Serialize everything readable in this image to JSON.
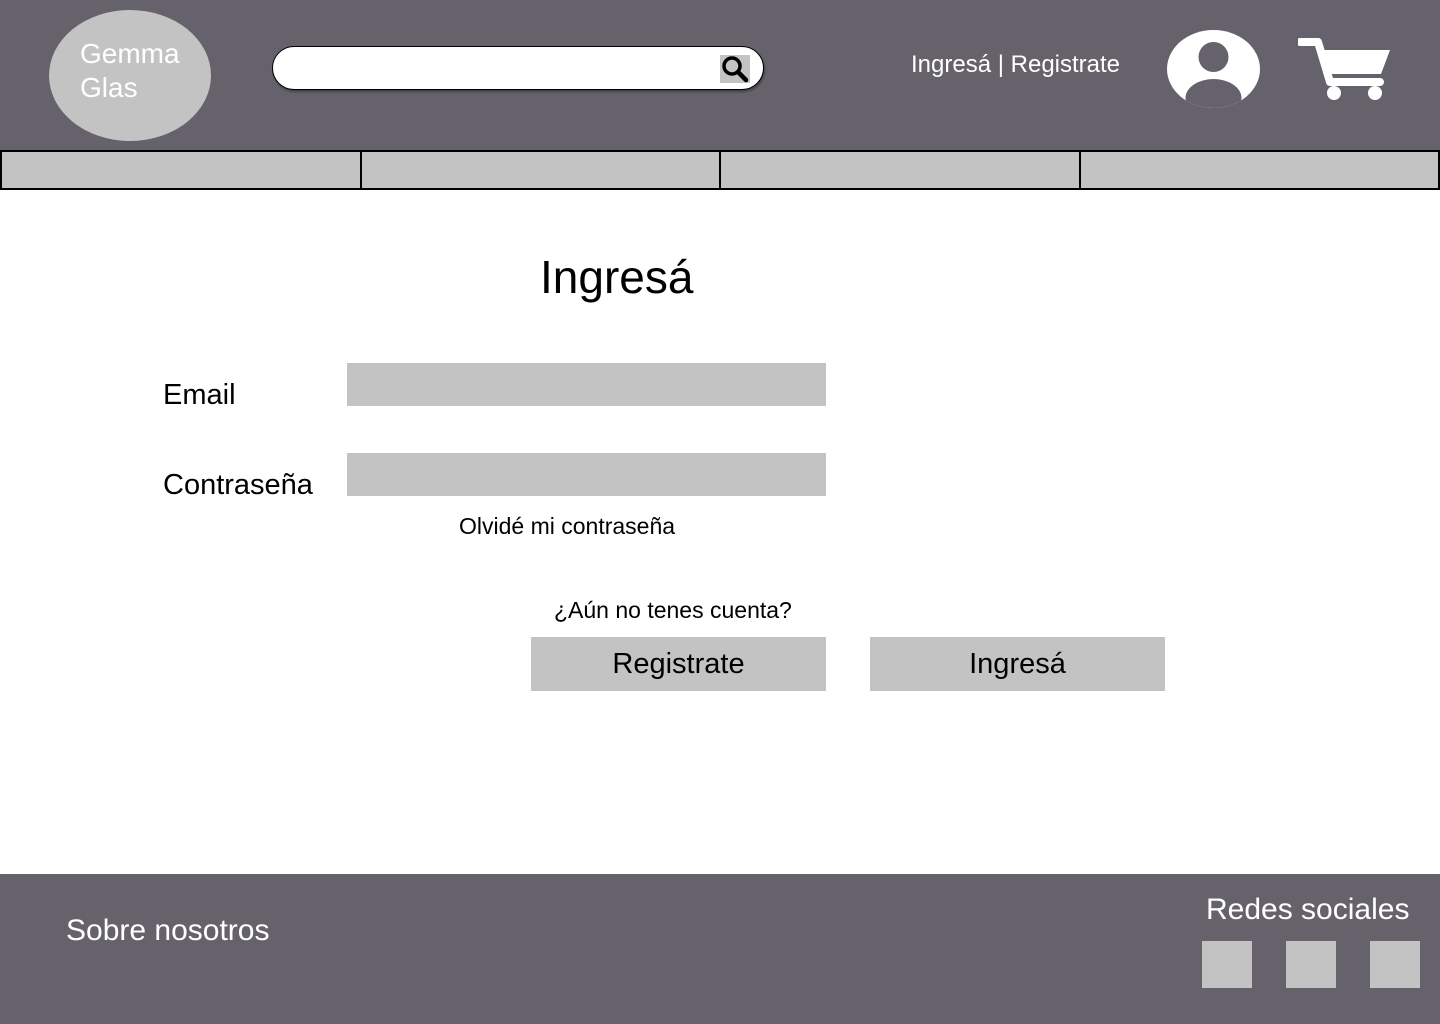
{
  "header": {
    "logo_text": "Gemma\nGlas",
    "search": {
      "value": "",
      "placeholder": ""
    },
    "auth": {
      "login_label": "Ingresá",
      "separator": " | ",
      "register_label": "Registrate"
    },
    "icons": {
      "search": "search-icon",
      "avatar": "user-avatar-icon",
      "cart": "cart-icon"
    }
  },
  "nav": {
    "tabs": [
      "",
      "",
      "",
      ""
    ]
  },
  "main": {
    "title": "Ingresá",
    "email_label": "Email",
    "email_value": "",
    "password_label": "Contraseña",
    "password_value": "",
    "forgot_password": "Olvidé mi contraseña",
    "no_account": "¿Aún no tenes cuenta?",
    "register_button": "Registrate",
    "login_button": "Ingresá"
  },
  "footer": {
    "about": "Sobre nosotros",
    "social_title": "Redes sociales",
    "social_icons": [
      "social-icon-1",
      "social-icon-2",
      "social-icon-3"
    ]
  },
  "colors": {
    "header_bg": "#66626c",
    "placeholder_gray": "#c3c3c3",
    "white": "#ffffff"
  }
}
